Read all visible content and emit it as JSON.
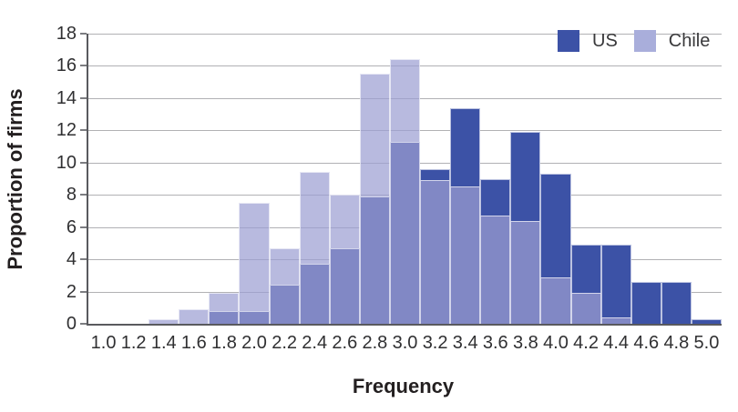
{
  "chart_data": {
    "type": "bar",
    "subtype": "overlaid-histogram",
    "xlabel": "Frequency",
    "ylabel": "Proportion of firms",
    "categories": [
      "1.0",
      "1.2",
      "1.4",
      "1.6",
      "1.8",
      "2.0",
      "2.2",
      "2.4",
      "2.6",
      "2.8",
      "3.0",
      "3.2",
      "3.4",
      "3.6",
      "3.8",
      "4.0",
      "4.2",
      "4.4",
      "4.6",
      "4.8",
      "5.0"
    ],
    "series": [
      {
        "name": "US",
        "color": "#3c52a6",
        "values": [
          0,
          0,
          0,
          0,
          0.8,
          0.8,
          2.4,
          3.7,
          4.7,
          7.9,
          11.3,
          9.6,
          13.4,
          9.0,
          11.9,
          9.3,
          4.9,
          4.9,
          2.6,
          2.6,
          0.3
        ]
      },
      {
        "name": "Chile",
        "color": "#a9aedb",
        "values": [
          0,
          0,
          0.3,
          0.9,
          1.9,
          7.5,
          4.7,
          9.4,
          8.0,
          15.5,
          16.4,
          8.9,
          8.5,
          6.7,
          6.4,
          2.9,
          1.9,
          0.4,
          0,
          0,
          0
        ]
      }
    ],
    "overlap_color": "#8188c5",
    "chile_fill_rgba": "rgba(156,160,211,0.72)",
    "ylim": [
      0,
      18
    ],
    "yticks": [
      0,
      2,
      4,
      6,
      8,
      10,
      12,
      14,
      16,
      18
    ],
    "grid": true,
    "gridline_color": "#b1b1b4",
    "axis_color": "#595a5e",
    "legend_position": "top-right"
  }
}
